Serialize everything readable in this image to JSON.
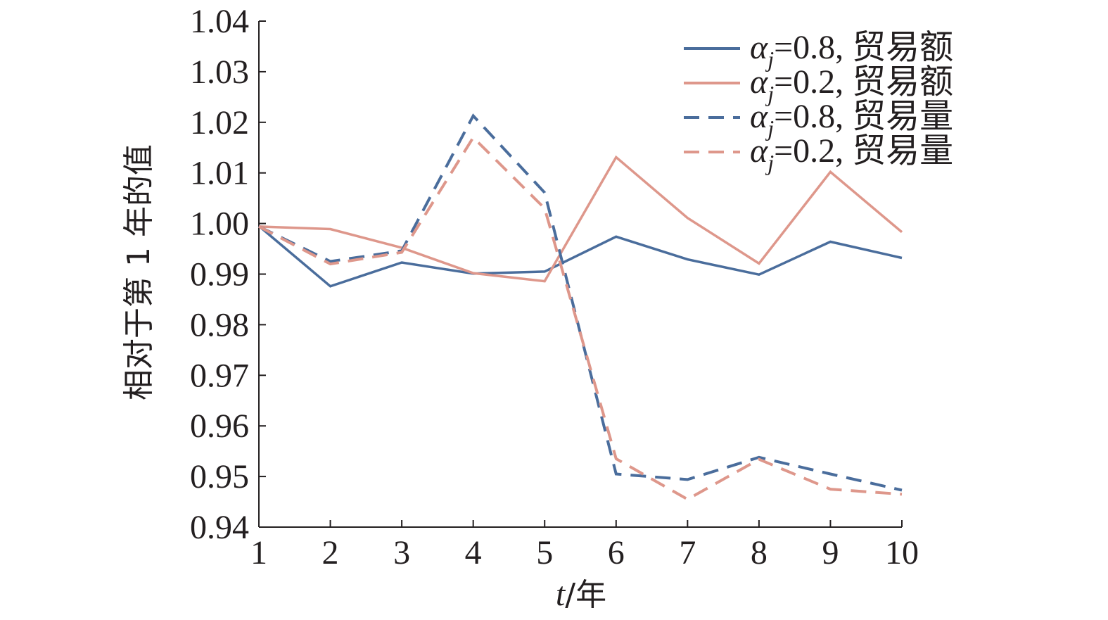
{
  "chart_data": {
    "type": "line",
    "title": "",
    "xlabel_italic": "t",
    "xlabel_rest": "/年",
    "ylabel": "相对于第 1 年的值",
    "x": [
      1,
      2,
      3,
      4,
      5,
      6,
      7,
      8,
      9,
      10
    ],
    "xlim": [
      1,
      10
    ],
    "ylim": [
      0.94,
      1.04
    ],
    "x_ticks": [
      "1",
      "2",
      "3",
      "4",
      "5",
      "6",
      "7",
      "8",
      "9",
      "10"
    ],
    "y_ticks": [
      "0.94",
      "0.95",
      "0.96",
      "0.97",
      "0.98",
      "0.99",
      "1.00",
      "1.01",
      "1.02",
      "1.03",
      "1.04"
    ],
    "grid": false,
    "legend_position": "top-right",
    "series": [
      {
        "sym": "α",
        "sub": "j",
        "name": "=0.8, 贸易额",
        "color": "#4a6d9c",
        "dash": "solid",
        "values": [
          0.9995,
          0.9876,
          0.9923,
          0.9901,
          0.9905,
          0.9974,
          0.9929,
          0.9899,
          0.9964,
          0.9932
        ]
      },
      {
        "sym": "α",
        "sub": "j",
        "name": "=0.2, 贸易额",
        "color": "#de978b",
        "dash": "solid",
        "values": [
          0.9994,
          0.9989,
          0.9952,
          0.9902,
          0.9886,
          1.0131,
          1.0011,
          0.9921,
          1.0102,
          0.9983
        ]
      },
      {
        "sym": "α",
        "sub": "j",
        "name": "=0.8, 贸易量",
        "color": "#4a6d9c",
        "dash": "dashed",
        "values": [
          0.9994,
          0.9925,
          0.9946,
          1.0213,
          1.0061,
          0.9505,
          0.9494,
          0.9538,
          0.9505,
          0.9473
        ]
      },
      {
        "sym": "α",
        "sub": "j",
        "name": "=0.2, 贸易量",
        "color": "#de978b",
        "dash": "dashed",
        "values": [
          0.9994,
          0.992,
          0.9943,
          1.017,
          1.003,
          0.9535,
          0.9455,
          0.9534,
          0.9475,
          0.9465
        ]
      }
    ]
  }
}
